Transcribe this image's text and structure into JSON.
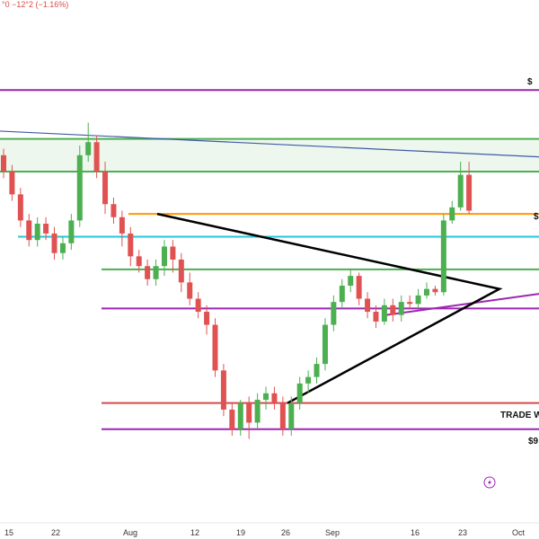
{
  "header": {
    "change_text": "°0  −12°2 (−1.16%)"
  },
  "chart_data": {
    "type": "candlestick",
    "x_ticks": [
      "15",
      "22",
      "Aug",
      "12",
      "19",
      "26",
      "Sep",
      "16",
      "23",
      "Oct"
    ],
    "annotations": {
      "trade_label": "TRADE W",
      "price_label": "$9",
      "partial_labels": [
        "$",
        "$"
      ]
    },
    "colors": {
      "up": "#4caf50",
      "down": "#e05252",
      "purple": "#9c27b0",
      "green": "#4caf50",
      "orange": "#ff9800",
      "cyan": "#26c6da",
      "red": "#d84a4a",
      "navy": "#3f5aa8",
      "black": "#000000"
    },
    "ohlc": [
      [
        40,
        35,
        42,
        33
      ],
      [
        35,
        28,
        37,
        26
      ],
      [
        28,
        20,
        30,
        18
      ],
      [
        20,
        14,
        22,
        12
      ],
      [
        14,
        19,
        21,
        12
      ],
      [
        19,
        16,
        21,
        14
      ],
      [
        16,
        10,
        18,
        8
      ],
      [
        10,
        13,
        15,
        8
      ],
      [
        13,
        20,
        22,
        11
      ],
      [
        20,
        40,
        43,
        18
      ],
      [
        40,
        44,
        50,
        38
      ],
      [
        44,
        35,
        46,
        33
      ],
      [
        35,
        25,
        38,
        22
      ],
      [
        25,
        21,
        27,
        19
      ],
      [
        21,
        16,
        23,
        12
      ],
      [
        16,
        9,
        18,
        6
      ],
      [
        9,
        6,
        11,
        4
      ],
      [
        6,
        2,
        8,
        0
      ],
      [
        2,
        6,
        8,
        0
      ],
      [
        6,
        12,
        14,
        3
      ],
      [
        12,
        8,
        14,
        4
      ],
      [
        8,
        1,
        10,
        -2
      ],
      [
        1,
        -4,
        4,
        -6
      ],
      [
        -4,
        -8,
        -2,
        -10
      ],
      [
        -8,
        -12,
        -6,
        -15
      ],
      [
        -12,
        -26,
        -10,
        -28
      ],
      [
        -26,
        -38,
        -24,
        -40
      ],
      [
        -38,
        -44,
        -36,
        -46
      ],
      [
        -44,
        -36,
        -35,
        -46
      ],
      [
        -36,
        -42,
        -34,
        -47
      ],
      [
        -42,
        -35,
        -33,
        -44
      ],
      [
        -35,
        -33,
        -31,
        -38
      ],
      [
        -33,
        -36,
        -31,
        -38
      ],
      [
        -36,
        -44,
        -34,
        -46
      ],
      [
        -44,
        -36,
        -34,
        -46
      ],
      [
        -36,
        -30,
        -28,
        -38
      ],
      [
        -30,
        -28,
        -26,
        -33
      ],
      [
        -28,
        -24,
        -22,
        -30
      ],
      [
        -24,
        -12,
        -10,
        -26
      ],
      [
        -12,
        -5,
        -3,
        -14
      ],
      [
        -5,
        0,
        2,
        -7
      ],
      [
        0,
        3,
        5,
        -2
      ],
      [
        3,
        -4,
        4,
        -6
      ],
      [
        -4,
        -8,
        -2,
        -10
      ],
      [
        -8,
        -11,
        -6,
        -13
      ],
      [
        -11,
        -6,
        -4,
        -12
      ],
      [
        -6,
        -9,
        -4,
        -11
      ],
      [
        -9,
        -5,
        -3,
        -11
      ],
      [
        -5,
        -5.6,
        -3,
        -7
      ],
      [
        -5.6,
        -3,
        -1,
        -7
      ],
      [
        -3,
        -1,
        1,
        -4
      ],
      [
        -1,
        -2,
        0,
        -3
      ],
      [
        -2,
        20,
        22,
        -3
      ],
      [
        20,
        24,
        26,
        19
      ],
      [
        24,
        34,
        38,
        23
      ],
      [
        34,
        23,
        38,
        22
      ]
    ],
    "levels": [
      {
        "price": 60,
        "color": "purple"
      },
      {
        "price": 45,
        "color": "green"
      },
      {
        "price": 35,
        "color": "green"
      },
      {
        "price": 22,
        "color": "orange"
      },
      {
        "price": 15,
        "color": "cyan"
      },
      {
        "price": 5,
        "color": "green"
      },
      {
        "price": -7,
        "color": "purple"
      },
      {
        "price": -36,
        "color": "red"
      },
      {
        "price": -44,
        "color": "purple"
      }
    ]
  }
}
